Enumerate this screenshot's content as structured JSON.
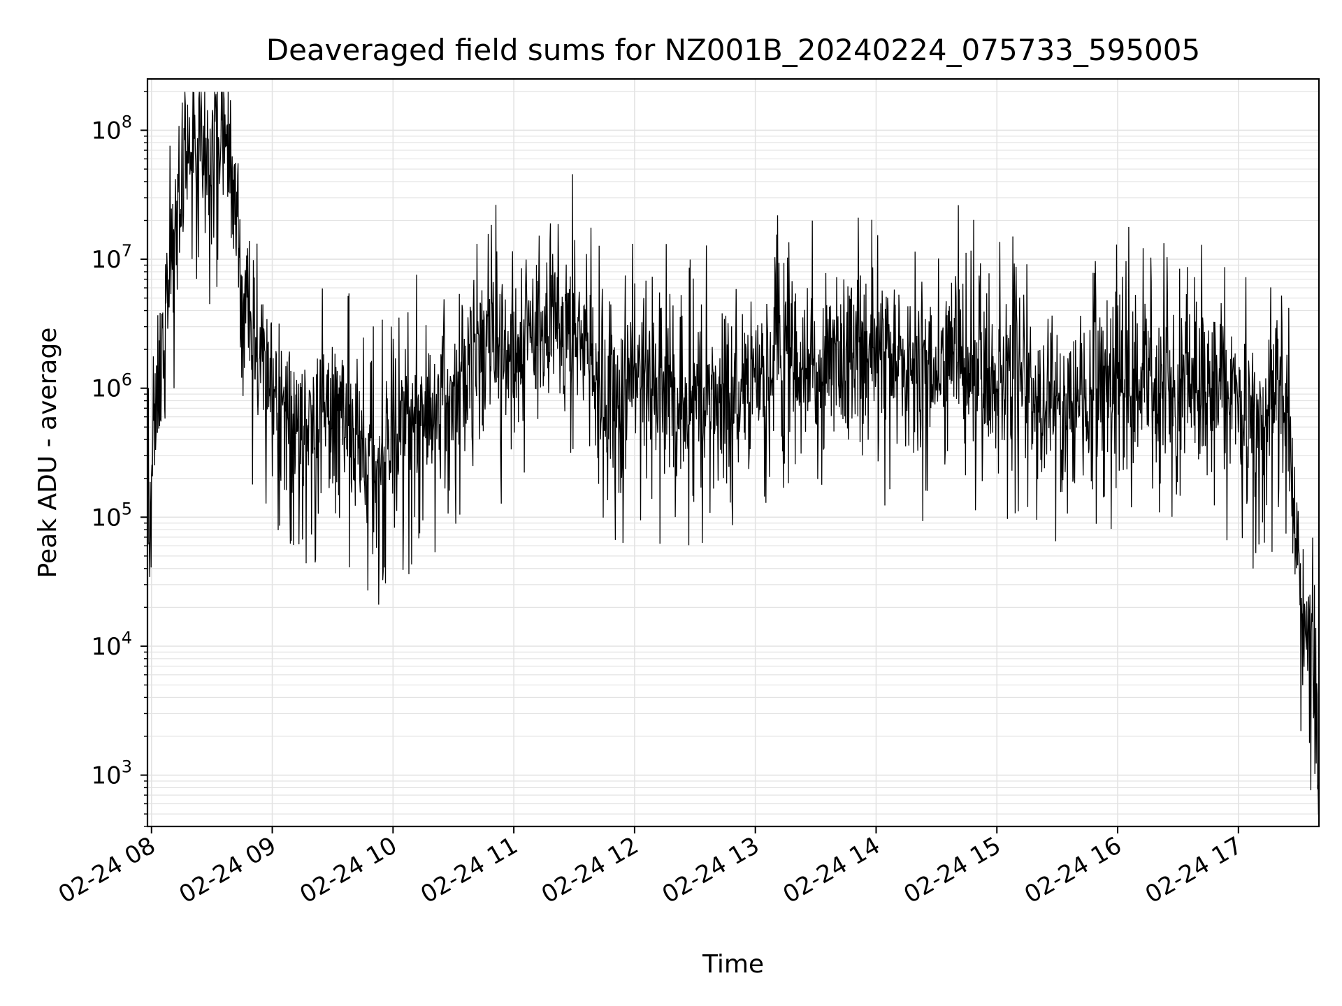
{
  "chart_data": {
    "type": "line",
    "title": "Deaveraged field sums for NZ001B_20240224_075733_595005",
    "xlabel": "Time",
    "ylabel": "Peak ADU - average",
    "yscale": "log",
    "ylim": [
      400,
      250000000
    ],
    "xlim": [
      "2024-02-24T07:58",
      "2024-02-24T17:40"
    ],
    "grid": true,
    "line_color": "#000000",
    "grid_color": "#e3e3e3",
    "x_ticks": [
      "02-24 08",
      "02-24 09",
      "02-24 10",
      "02-24 11",
      "02-24 12",
      "02-24 13",
      "02-24 14",
      "02-24 15",
      "02-24 16",
      "02-24 17"
    ],
    "y_ticks": [
      {
        "base": "10",
        "exp": "3"
      },
      {
        "base": "10",
        "exp": "4"
      },
      {
        "base": "10",
        "exp": "5"
      },
      {
        "base": "10",
        "exp": "6"
      },
      {
        "base": "10",
        "exp": "7"
      },
      {
        "base": "10",
        "exp": "8"
      }
    ],
    "series": [
      {
        "x": [
          "2024-02-24T07:58",
          "2024-02-24T08:00",
          "2024-02-24T08:03",
          "2024-02-24T08:06",
          "2024-02-24T08:10",
          "2024-02-24T08:14",
          "2024-02-24T08:18",
          "2024-02-24T08:22",
          "2024-02-24T08:26",
          "2024-02-24T08:30",
          "2024-02-24T08:34",
          "2024-02-24T08:38",
          "2024-02-24T08:42",
          "2024-02-24T08:46",
          "2024-02-24T08:50",
          "2024-02-24T08:55",
          "2024-02-24T09:00",
          "2024-02-24T09:05",
          "2024-02-24T09:10",
          "2024-02-24T09:15",
          "2024-02-24T09:20",
          "2024-02-24T09:25",
          "2024-02-24T09:30",
          "2024-02-24T09:35",
          "2024-02-24T09:40",
          "2024-02-24T09:45",
          "2024-02-24T09:50",
          "2024-02-24T09:55",
          "2024-02-24T10:00",
          "2024-02-24T10:05",
          "2024-02-24T10:10",
          "2024-02-24T10:15",
          "2024-02-24T10:20",
          "2024-02-24T10:25",
          "2024-02-24T10:30",
          "2024-02-24T10:35",
          "2024-02-24T10:40",
          "2024-02-24T10:45",
          "2024-02-24T10:50",
          "2024-02-24T10:55",
          "2024-02-24T11:00",
          "2024-02-24T11:05",
          "2024-02-24T11:10",
          "2024-02-24T11:15",
          "2024-02-24T11:20",
          "2024-02-24T11:25",
          "2024-02-24T11:30",
          "2024-02-24T11:35",
          "2024-02-24T11:40",
          "2024-02-24T11:45",
          "2024-02-24T11:50",
          "2024-02-24T11:55",
          "2024-02-24T12:00",
          "2024-02-24T12:05",
          "2024-02-24T12:10",
          "2024-02-24T12:15",
          "2024-02-24T12:20",
          "2024-02-24T12:25",
          "2024-02-24T12:30",
          "2024-02-24T12:35",
          "2024-02-24T12:40",
          "2024-02-24T12:45",
          "2024-02-24T12:50",
          "2024-02-24T12:55",
          "2024-02-24T13:00",
          "2024-02-24T13:05",
          "2024-02-24T13:10",
          "2024-02-24T13:15",
          "2024-02-24T13:20",
          "2024-02-24T13:25",
          "2024-02-24T13:30",
          "2024-02-24T13:35",
          "2024-02-24T13:40",
          "2024-02-24T13:45",
          "2024-02-24T13:50",
          "2024-02-24T13:55",
          "2024-02-24T14:00",
          "2024-02-24T14:05",
          "2024-02-24T14:10",
          "2024-02-24T14:15",
          "2024-02-24T14:20",
          "2024-02-24T14:25",
          "2024-02-24T14:30",
          "2024-02-24T14:35",
          "2024-02-24T14:40",
          "2024-02-24T14:45",
          "2024-02-24T14:50",
          "2024-02-24T14:55",
          "2024-02-24T15:00",
          "2024-02-24T15:05",
          "2024-02-24T15:10",
          "2024-02-24T15:15",
          "2024-02-24T15:20",
          "2024-02-24T15:25",
          "2024-02-24T15:30",
          "2024-02-24T15:35",
          "2024-02-24T15:40",
          "2024-02-24T15:45",
          "2024-02-24T15:50",
          "2024-02-24T15:55",
          "2024-02-24T16:00",
          "2024-02-24T16:05",
          "2024-02-24T16:10",
          "2024-02-24T16:15",
          "2024-02-24T16:20",
          "2024-02-24T16:25",
          "2024-02-24T16:30",
          "2024-02-24T16:35",
          "2024-02-24T16:40",
          "2024-02-24T16:45",
          "2024-02-24T16:50",
          "2024-02-24T16:55",
          "2024-02-24T17:00",
          "2024-02-24T17:05",
          "2024-02-24T17:10",
          "2024-02-24T17:15",
          "2024-02-24T17:20",
          "2024-02-24T17:25",
          "2024-02-24T17:28",
          "2024-02-24T17:31",
          "2024-02-24T17:34",
          "2024-02-24T17:36",
          "2024-02-24T17:38",
          "2024-02-24T17:40"
        ],
        "y": [
          60000,
          300000,
          1000000,
          3000000,
          10000000,
          30000000,
          75000000,
          80000000,
          70000000,
          60000000,
          90000000,
          80000000,
          20000000,
          5000000,
          2000000,
          1500000,
          800000,
          900000,
          700000,
          500000,
          600000,
          600000,
          700000,
          500000,
          400000,
          300000,
          250000,
          300000,
          400000,
          500000,
          600000,
          500000,
          600000,
          800000,
          1000000,
          1500000,
          2000000,
          2000000,
          2000000,
          1500000,
          1800000,
          2500000,
          3000000,
          3000000,
          3000000,
          2500000,
          3000000,
          2500000,
          1500000,
          800000,
          700000,
          800000,
          1000000,
          1200000,
          1000000,
          900000,
          800000,
          700000,
          700000,
          800000,
          900000,
          1000000,
          1000000,
          1100000,
          1500000,
          2000000,
          2000000,
          2000000,
          1800000,
          1500000,
          1500000,
          1500000,
          2000000,
          2000000,
          2500000,
          2000000,
          2000000,
          1800000,
          1500000,
          1500000,
          1200000,
          1200000,
          1300000,
          1500000,
          2000000,
          1500000,
          1200000,
          1000000,
          1100000,
          1200000,
          1500000,
          1200000,
          1000000,
          1000000,
          1000000,
          900000,
          800000,
          1000000,
          1100000,
          1000000,
          1000000,
          1200000,
          1200000,
          1200000,
          1100000,
          1000000,
          1000000,
          1100000,
          1000000,
          1000000,
          1000000,
          900000,
          800000,
          600000,
          600000,
          700000,
          1200000,
          500000,
          100000,
          30000,
          20000,
          10000,
          5000,
          3000
        ]
      }
    ]
  }
}
